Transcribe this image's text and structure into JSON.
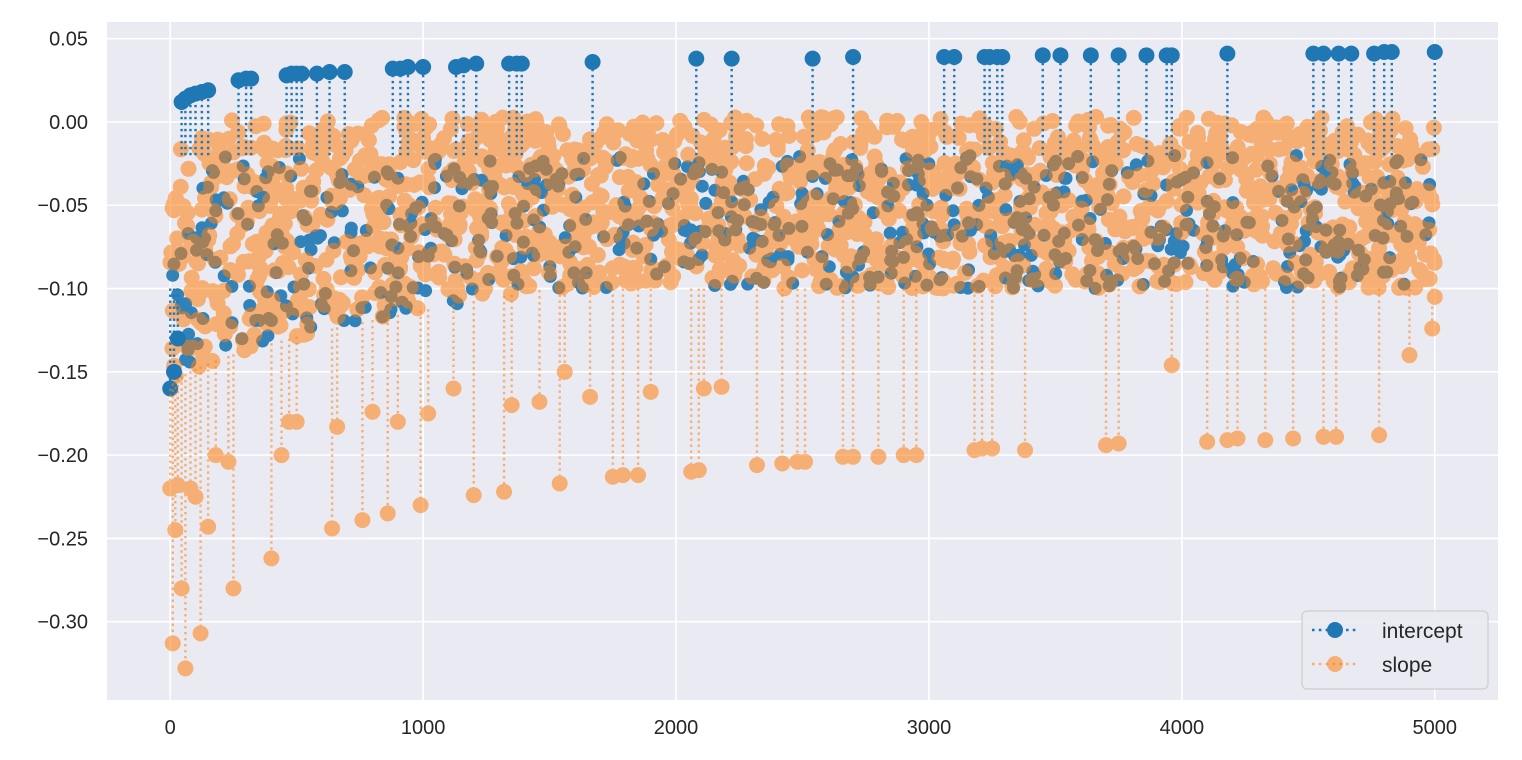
{
  "chart_data": {
    "type": "scatter",
    "title": "",
    "xlabel": "",
    "ylabel": "",
    "xlim": [
      -250,
      5250
    ],
    "ylim": [
      -0.347,
      0.06
    ],
    "grid": true,
    "background": "#eaeaf2",
    "legend_position": "lower-right",
    "x_ticks": [
      0,
      1000,
      2000,
      3000,
      4000,
      5000
    ],
    "x_tick_labels": [
      "0",
      "1000",
      "2000",
      "3000",
      "4000",
      "5000"
    ],
    "y_ticks": [
      0.05,
      0.0,
      -0.05,
      -0.1,
      -0.15,
      -0.2,
      -0.25,
      -0.3
    ],
    "y_tick_labels": [
      "0.05",
      "0.00",
      "−0.05",
      "−0.10",
      "−0.15",
      "−0.20",
      "−0.25",
      "−0.30"
    ],
    "series": [
      {
        "name": "intercept",
        "color": "#1f77b4",
        "linestyle": "dotted",
        "marker": "circle",
        "alpha": 1.0,
        "x": [
          0,
          15,
          30,
          45,
          60,
          80,
          100,
          125,
          150,
          270,
          300,
          320,
          460,
          480,
          500,
          520,
          580,
          630,
          690,
          880,
          910,
          940,
          1000,
          1130,
          1160,
          1210,
          1340,
          1370,
          1390,
          1670,
          2080,
          2220,
          2540,
          2700,
          3060,
          3100,
          3220,
          3240,
          3270,
          3290,
          3450,
          3520,
          3640,
          3750,
          3860,
          3940,
          3960,
          4180,
          4520,
          4560,
          4620,
          4670,
          4760,
          4800,
          4830,
          5000
        ],
        "y": [
          -0.16,
          -0.15,
          -0.13,
          0.012,
          0.014,
          0.016,
          0.017,
          0.018,
          0.019,
          0.025,
          0.026,
          0.026,
          0.028,
          0.029,
          0.029,
          0.029,
          0.029,
          0.03,
          0.03,
          0.032,
          0.032,
          0.033,
          0.033,
          0.033,
          0.034,
          0.035,
          0.035,
          0.035,
          0.035,
          0.036,
          0.038,
          0.038,
          0.038,
          0.039,
          0.039,
          0.039,
          0.039,
          0.039,
          0.039,
          0.039,
          0.04,
          0.04,
          0.04,
          0.04,
          0.04,
          0.04,
          0.04,
          0.041,
          0.041,
          0.041,
          0.041,
          0.041,
          0.041,
          0.042,
          0.042,
          0.042
        ]
      },
      {
        "name": "slope",
        "color": "#ff7f0e",
        "linestyle": "dotted",
        "marker": "circle",
        "alpha": 0.55,
        "x": [
          0,
          10,
          20,
          30,
          45,
          60,
          80,
          100,
          120,
          150,
          180,
          230,
          250,
          400,
          440,
          470,
          500,
          640,
          660,
          760,
          800,
          860,
          900,
          990,
          1020,
          1120,
          1200,
          1320,
          1350,
          1460,
          1540,
          1560,
          1660,
          1750,
          1790,
          1850,
          1900,
          2060,
          2090,
          2110,
          2180,
          2320,
          2420,
          2480,
          2510,
          2660,
          2700,
          2800,
          2900,
          2950,
          3180,
          3210,
          3250,
          3380,
          3700,
          3750,
          3960,
          4100,
          4180,
          4220,
          4330,
          4440,
          4560,
          4610,
          4780,
          4900,
          4990,
          5000
        ],
        "y": [
          -0.22,
          -0.313,
          -0.245,
          -0.218,
          -0.28,
          -0.328,
          -0.22,
          -0.225,
          -0.307,
          -0.243,
          -0.2,
          -0.204,
          -0.28,
          -0.262,
          -0.2,
          -0.18,
          -0.18,
          -0.244,
          -0.183,
          -0.239,
          -0.174,
          -0.235,
          -0.18,
          -0.23,
          -0.175,
          -0.16,
          -0.224,
          -0.222,
          -0.17,
          -0.168,
          -0.217,
          -0.15,
          -0.165,
          -0.213,
          -0.212,
          -0.212,
          -0.162,
          -0.21,
          -0.209,
          -0.16,
          -0.159,
          -0.206,
          -0.205,
          -0.204,
          -0.204,
          -0.201,
          -0.201,
          -0.201,
          -0.2,
          -0.2,
          -0.197,
          -0.196,
          -0.196,
          -0.197,
          -0.194,
          -0.193,
          -0.146,
          -0.192,
          -0.191,
          -0.19,
          -0.191,
          -0.19,
          -0.189,
          -0.189,
          -0.188,
          -0.14,
          -0.124,
          -0.105
        ]
      }
    ]
  }
}
